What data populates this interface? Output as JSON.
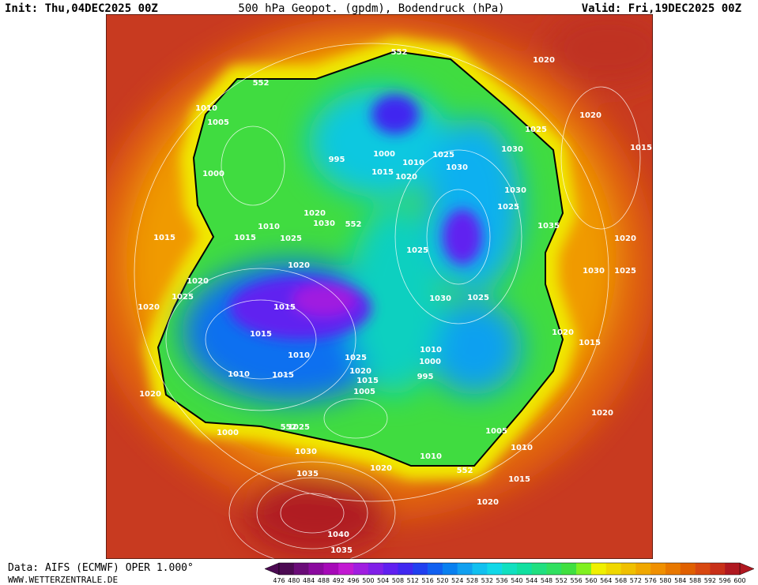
{
  "header": {
    "init": "Init: Thu,04DEC2025 00Z",
    "title": "500 hPa Geopot. (gpdm), Bodendruck (hPa)",
    "valid": "Valid: Fri,19DEC2025 00Z"
  },
  "map": {
    "labels": [
      "1020",
      "1020",
      "1015",
      "1025",
      "1030",
      "1030",
      "1025",
      "1030",
      "1025",
      "1035",
      "1020",
      "1025",
      "1030",
      "1025",
      "1030",
      "1025",
      "1020",
      "1015",
      "1020",
      "1010",
      "1005",
      "1015",
      "1020",
      "1010",
      "1020",
      "995",
      "1000",
      "1010",
      "1005",
      "1015",
      "1020",
      "1025",
      "1015",
      "1010",
      "1010",
      "1015",
      "1015",
      "1020",
      "1025",
      "1010",
      "1015",
      "1015",
      "1020",
      "1025",
      "1020",
      "1020",
      "1000",
      "1025",
      "1030",
      "1035",
      "1040",
      "1035",
      "1000",
      "1005",
      "1010",
      "995",
      "1000",
      "1015",
      "1010",
      "1020",
      "1020",
      "1030",
      "552",
      "552",
      "552",
      "552",
      "552"
    ]
  },
  "colorbar": {
    "labels": [
      476,
      480,
      484,
      488,
      492,
      496,
      500,
      504,
      508,
      512,
      516,
      520,
      524,
      528,
      532,
      536,
      540,
      544,
      548,
      552,
      556,
      560,
      564,
      568,
      572,
      576,
      580,
      584,
      588,
      592,
      596,
      600
    ],
    "colors": [
      "#4b0a52",
      "#6a0c78",
      "#8a0a9e",
      "#a60ab8",
      "#c21ad2",
      "#a01ee0",
      "#8020e8",
      "#6020f0",
      "#4028f0",
      "#2040f0",
      "#1060f0",
      "#0880f0",
      "#10a0f0",
      "#10c0f0",
      "#10d8e8",
      "#10e0c0",
      "#10e0a0",
      "#20e080",
      "#30e060",
      "#40e040",
      "#80f020",
      "#f0f000",
      "#f0d800",
      "#f0c000",
      "#f0a800",
      "#f09000",
      "#e87800",
      "#e06000",
      "#d84810",
      "#c83018",
      "#b01820"
    ]
  },
  "footer": {
    "source": "Data: AIFS (ECMWF) OPER 1.000°",
    "website": "WWW.WETTERZENTRALE.DE"
  }
}
